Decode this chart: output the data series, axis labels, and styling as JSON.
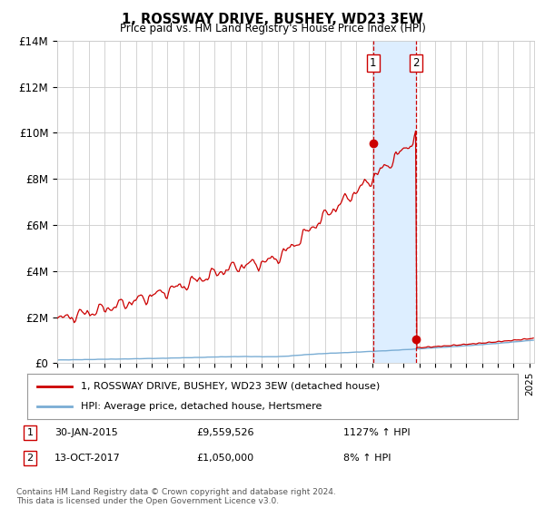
{
  "title": "1, ROSSWAY DRIVE, BUSHEY, WD23 3EW",
  "subtitle": "Price paid vs. HM Land Registry's House Price Index (HPI)",
  "ylim": [
    0,
    14000000
  ],
  "ytick_labels": [
    "£0",
    "£2M",
    "£4M",
    "£6M",
    "£8M",
    "£10M",
    "£12M",
    "£14M"
  ],
  "ytick_values": [
    0,
    2000000,
    4000000,
    6000000,
    8000000,
    10000000,
    12000000,
    14000000
  ],
  "hpi_color": "#7aadd4",
  "price_color": "#cc0000",
  "marker_color": "#cc0000",
  "bg_color": "#ffffff",
  "grid_color": "#cccccc",
  "highlight_fill": "#ddeeff",
  "sale1_year": 2015.08,
  "sale1_price": 9559526,
  "sale2_year": 2017.79,
  "sale2_price": 1050000,
  "legend_line1": "1, ROSSWAY DRIVE, BUSHEY, WD23 3EW (detached house)",
  "legend_line2": "HPI: Average price, detached house, Hertsmere",
  "note1_date": "30-JAN-2015",
  "note1_price": "£9,559,526",
  "note1_hpi": "1127% ↑ HPI",
  "note2_date": "13-OCT-2017",
  "note2_price": "£1,050,000",
  "note2_hpi": "8% ↑ HPI",
  "footer": "Contains HM Land Registry data © Crown copyright and database right 2024.\nThis data is licensed under the Open Government Licence v3.0."
}
